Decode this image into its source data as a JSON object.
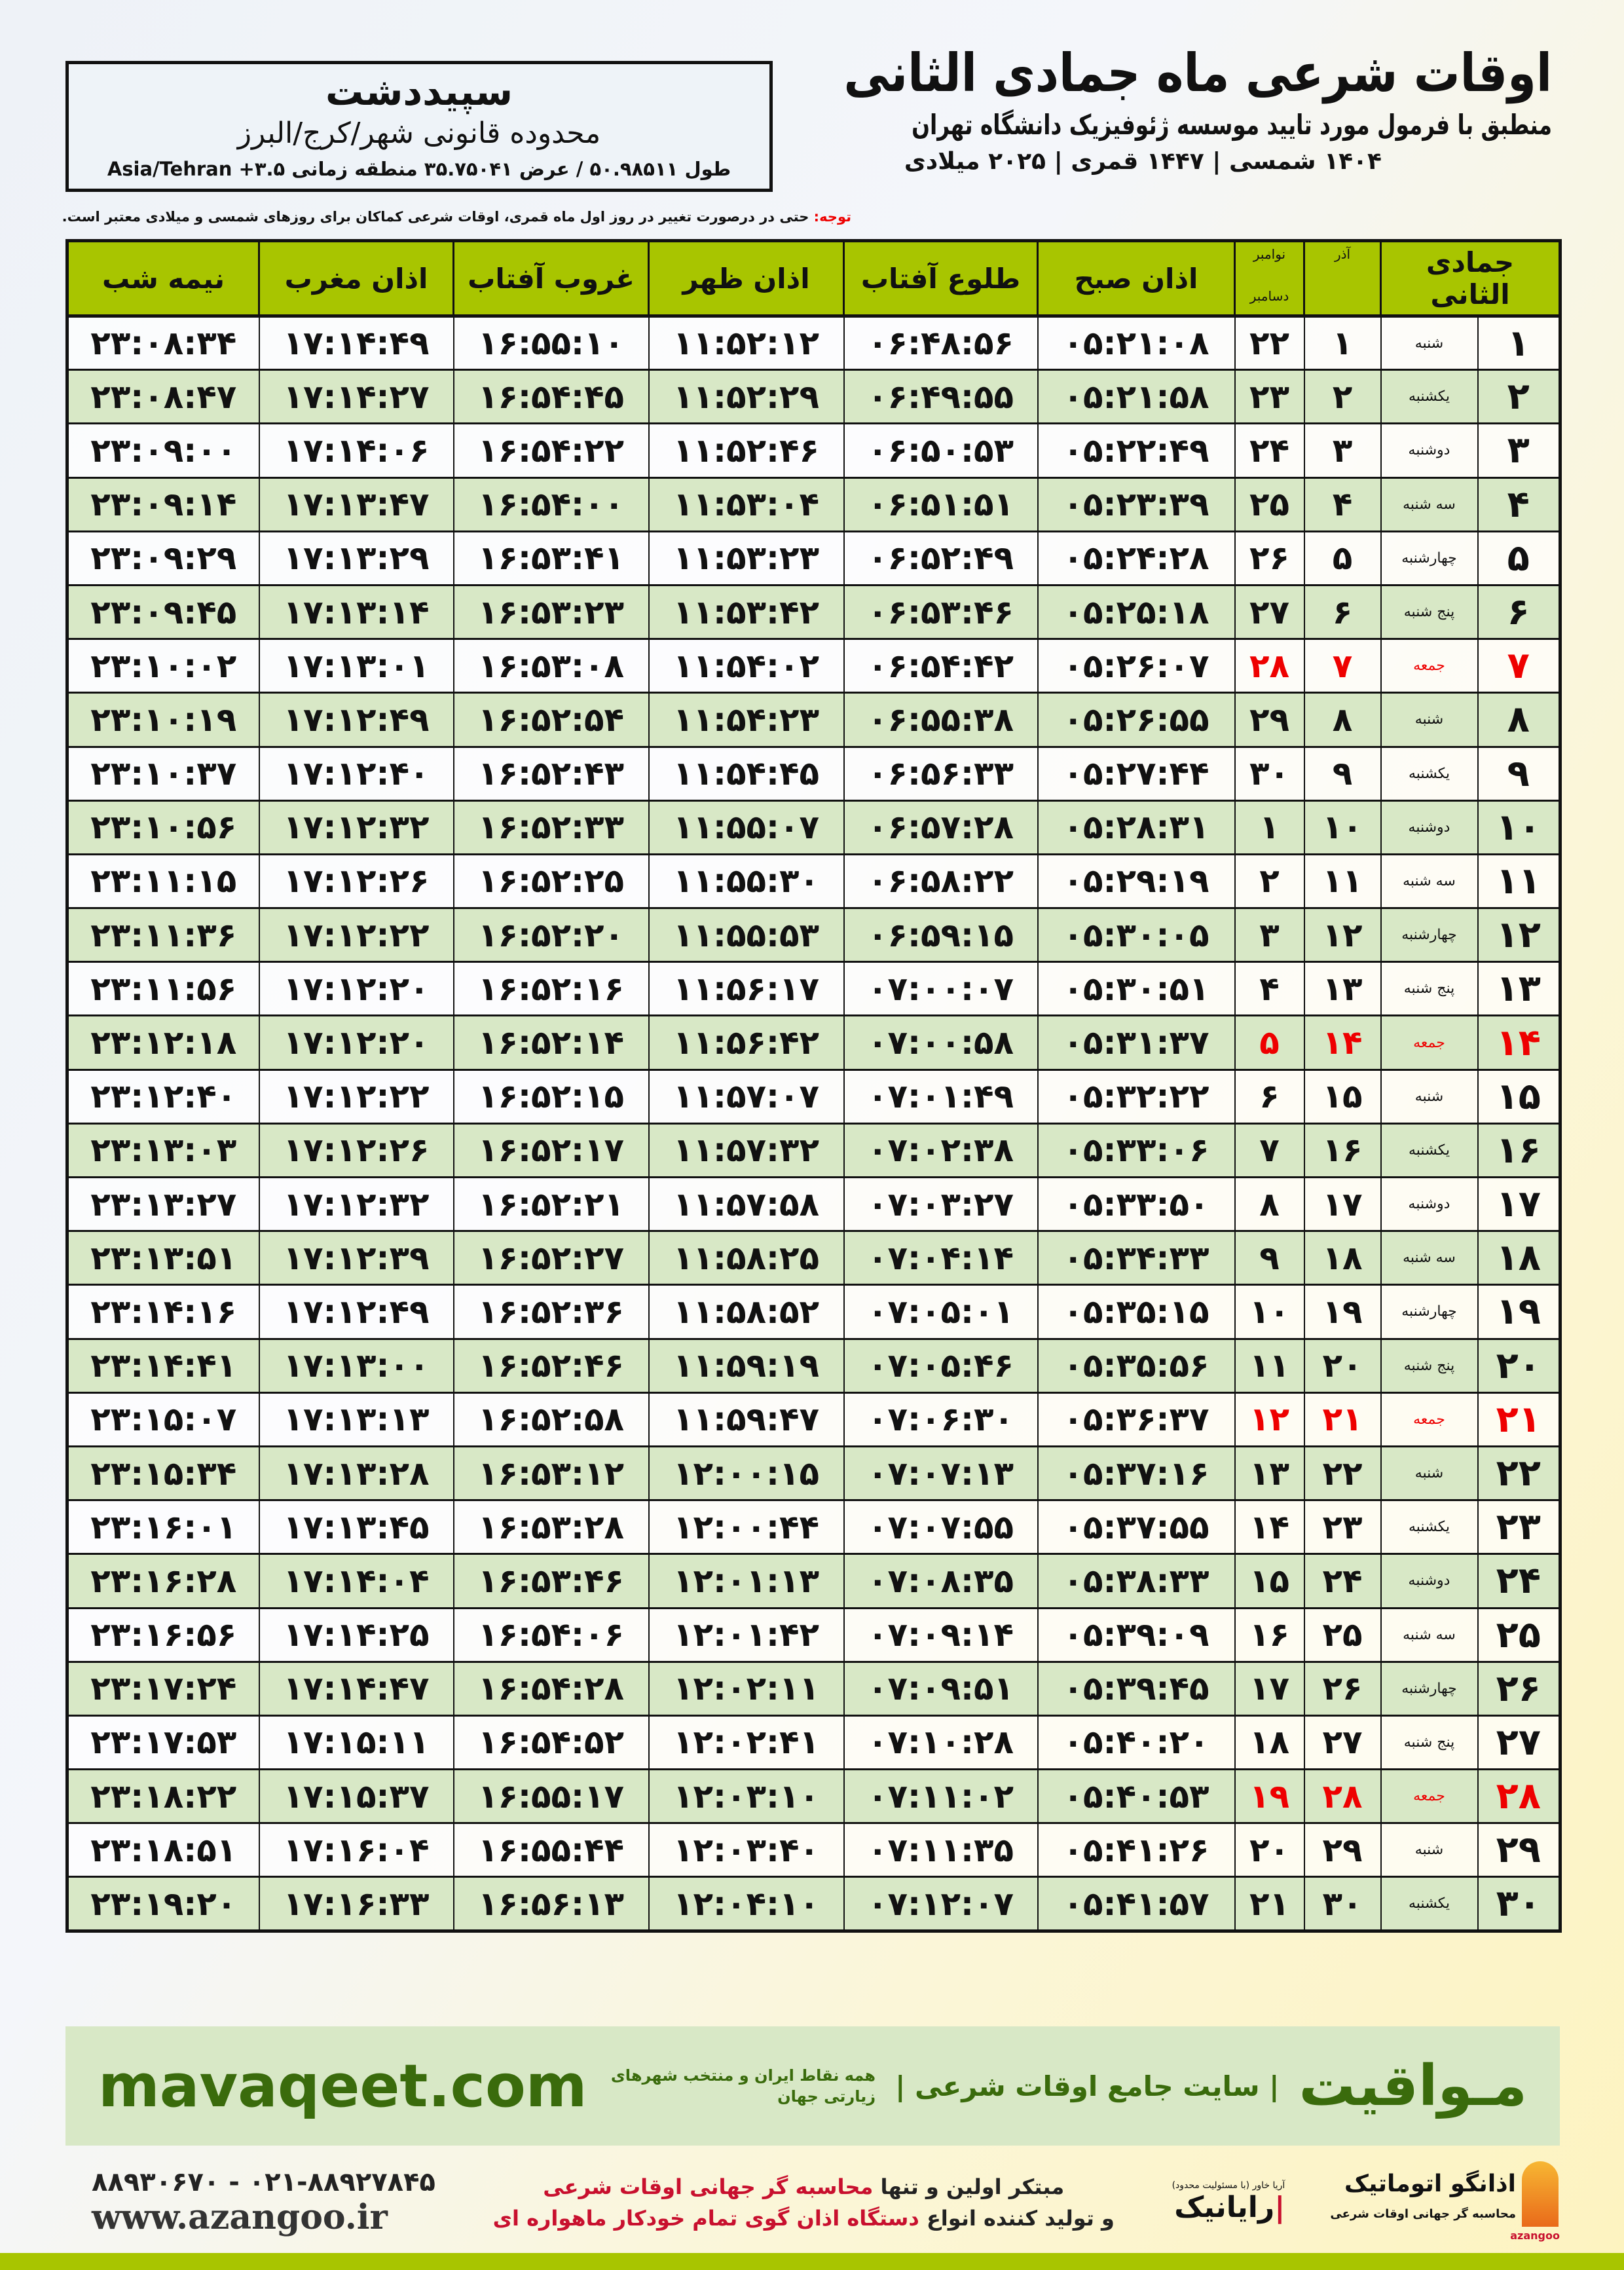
{
  "location": {
    "city": "سپیددشت",
    "region": "محدوده قانونی شهر/کرج/البرز",
    "coords": "طول ۵۰.۹۸۵۱۱ / عرض ۳۵.۷۵۰۴۱ منطقه زمانی ۳.۵+ Asia/Tehran"
  },
  "header": {
    "title": "اوقات شرعی ماه جمادی الثانی",
    "subtitle": "منطبق با فرمول مورد تایید موسسه ژئوفیزیک دانشگاه تهران",
    "years": "۱۴۰۴ شمسی | ۱۴۴۷ قمری | ۲۰۲۵ میلادی"
  },
  "note": {
    "label": "توجه:",
    "text": " حتی در درصورت تغییر در روز اول ماه قمری، اوقات شرعی کماکان برای روزهای شمسی و میلادی معتبر است."
  },
  "table": {
    "columns": {
      "hijri": "جمادی الثانی",
      "azar": "آذر",
      "greg_top": "نوامبر",
      "greg_bottom": "دسامبر",
      "fajr": "اذان صبح",
      "sunrise": "طلوع آفتاب",
      "dhuhr": "اذان ظهر",
      "sunset": "غروب آفتاب",
      "maghrib": "اذان مغرب",
      "midnight": "نیمه شب"
    },
    "holiday_color": "#e00000",
    "rows": [
      [
        "۱",
        "شنبه",
        "۱",
        "۲۲",
        "۰۵:۲۱:۰۸",
        "۰۶:۴۸:۵۶",
        "۱۱:۵۲:۱۲",
        "۱۶:۵۵:۱۰",
        "۱۷:۱۴:۴۹",
        "۲۳:۰۸:۳۴"
      ],
      [
        "۲",
        "یکشنبه",
        "۲",
        "۲۳",
        "۰۵:۲۱:۵۸",
        "۰۶:۴۹:۵۵",
        "۱۱:۵۲:۲۹",
        "۱۶:۵۴:۴۵",
        "۱۷:۱۴:۲۷",
        "۲۳:۰۸:۴۷"
      ],
      [
        "۳",
        "دوشنبه",
        "۳",
        "۲۴",
        "۰۵:۲۲:۴۹",
        "۰۶:۵۰:۵۳",
        "۱۱:۵۲:۴۶",
        "۱۶:۵۴:۲۲",
        "۱۷:۱۴:۰۶",
        "۲۳:۰۹:۰۰"
      ],
      [
        "۴",
        "سه شنبه",
        "۴",
        "۲۵",
        "۰۵:۲۳:۳۹",
        "۰۶:۵۱:۵۱",
        "۱۱:۵۳:۰۴",
        "۱۶:۵۴:۰۰",
        "۱۷:۱۳:۴۷",
        "۲۳:۰۹:۱۴"
      ],
      [
        "۵",
        "چهارشنبه",
        "۵",
        "۲۶",
        "۰۵:۲۴:۲۸",
        "۰۶:۵۲:۴۹",
        "۱۱:۵۳:۲۳",
        "۱۶:۵۳:۴۱",
        "۱۷:۱۳:۲۹",
        "۲۳:۰۹:۲۹"
      ],
      [
        "۶",
        "پنج شنبه",
        "۶",
        "۲۷",
        "۰۵:۲۵:۱۸",
        "۰۶:۵۳:۴۶",
        "۱۱:۵۳:۴۲",
        "۱۶:۵۳:۲۳",
        "۱۷:۱۳:۱۴",
        "۲۳:۰۹:۴۵"
      ],
      [
        "۷",
        "جمعه",
        "۷",
        "۲۸",
        "۰۵:۲۶:۰۷",
        "۰۶:۵۴:۴۲",
        "۱۱:۵۴:۰۲",
        "۱۶:۵۳:۰۸",
        "۱۷:۱۳:۰۱",
        "۲۳:۱۰:۰۲"
      ],
      [
        "۸",
        "شنبه",
        "۸",
        "۲۹",
        "۰۵:۲۶:۵۵",
        "۰۶:۵۵:۳۸",
        "۱۱:۵۴:۲۳",
        "۱۶:۵۲:۵۴",
        "۱۷:۱۲:۴۹",
        "۲۳:۱۰:۱۹"
      ],
      [
        "۹",
        "یکشنبه",
        "۹",
        "۳۰",
        "۰۵:۲۷:۴۴",
        "۰۶:۵۶:۳۳",
        "۱۱:۵۴:۴۵",
        "۱۶:۵۲:۴۳",
        "۱۷:۱۲:۴۰",
        "۲۳:۱۰:۳۷"
      ],
      [
        "۱۰",
        "دوشنبه",
        "۱۰",
        "۱",
        "۰۵:۲۸:۳۱",
        "۰۶:۵۷:۲۸",
        "۱۱:۵۵:۰۷",
        "۱۶:۵۲:۳۳",
        "۱۷:۱۲:۳۲",
        "۲۳:۱۰:۵۶"
      ],
      [
        "۱۱",
        "سه شنبه",
        "۱۱",
        "۲",
        "۰۵:۲۹:۱۹",
        "۰۶:۵۸:۲۲",
        "۱۱:۵۵:۳۰",
        "۱۶:۵۲:۲۵",
        "۱۷:۱۲:۲۶",
        "۲۳:۱۱:۱۵"
      ],
      [
        "۱۲",
        "چهارشنبه",
        "۱۲",
        "۳",
        "۰۵:۳۰:۰۵",
        "۰۶:۵۹:۱۵",
        "۱۱:۵۵:۵۳",
        "۱۶:۵۲:۲۰",
        "۱۷:۱۲:۲۲",
        "۲۳:۱۱:۳۶"
      ],
      [
        "۱۳",
        "پنج شنبه",
        "۱۳",
        "۴",
        "۰۵:۳۰:۵۱",
        "۰۷:۰۰:۰۷",
        "۱۱:۵۶:۱۷",
        "۱۶:۵۲:۱۶",
        "۱۷:۱۲:۲۰",
        "۲۳:۱۱:۵۶"
      ],
      [
        "۱۴",
        "جمعه",
        "۱۴",
        "۵",
        "۰۵:۳۱:۳۷",
        "۰۷:۰۰:۵۸",
        "۱۱:۵۶:۴۲",
        "۱۶:۵۲:۱۴",
        "۱۷:۱۲:۲۰",
        "۲۳:۱۲:۱۸"
      ],
      [
        "۱۵",
        "شنبه",
        "۱۵",
        "۶",
        "۰۵:۳۲:۲۲",
        "۰۷:۰۱:۴۹",
        "۱۱:۵۷:۰۷",
        "۱۶:۵۲:۱۵",
        "۱۷:۱۲:۲۲",
        "۲۳:۱۲:۴۰"
      ],
      [
        "۱۶",
        "یکشنبه",
        "۱۶",
        "۷",
        "۰۵:۳۳:۰۶",
        "۰۷:۰۲:۳۸",
        "۱۱:۵۷:۳۲",
        "۱۶:۵۲:۱۷",
        "۱۷:۱۲:۲۶",
        "۲۳:۱۳:۰۳"
      ],
      [
        "۱۷",
        "دوشنبه",
        "۱۷",
        "۸",
        "۰۵:۳۳:۵۰",
        "۰۷:۰۳:۲۷",
        "۱۱:۵۷:۵۸",
        "۱۶:۵۲:۲۱",
        "۱۷:۱۲:۳۲",
        "۲۳:۱۳:۲۷"
      ],
      [
        "۱۸",
        "سه شنبه",
        "۱۸",
        "۹",
        "۰۵:۳۴:۳۳",
        "۰۷:۰۴:۱۴",
        "۱۱:۵۸:۲۵",
        "۱۶:۵۲:۲۷",
        "۱۷:۱۲:۳۹",
        "۲۳:۱۳:۵۱"
      ],
      [
        "۱۹",
        "چهارشنبه",
        "۱۹",
        "۱۰",
        "۰۵:۳۵:۱۵",
        "۰۷:۰۵:۰۱",
        "۱۱:۵۸:۵۲",
        "۱۶:۵۲:۳۶",
        "۱۷:۱۲:۴۹",
        "۲۳:۱۴:۱۶"
      ],
      [
        "۲۰",
        "پنج شنبه",
        "۲۰",
        "۱۱",
        "۰۵:۳۵:۵۶",
        "۰۷:۰۵:۴۶",
        "۱۱:۵۹:۱۹",
        "۱۶:۵۲:۴۶",
        "۱۷:۱۳:۰۰",
        "۲۳:۱۴:۴۱"
      ],
      [
        "۲۱",
        "جمعه",
        "۲۱",
        "۱۲",
        "۰۵:۳۶:۳۷",
        "۰۷:۰۶:۳۰",
        "۱۱:۵۹:۴۷",
        "۱۶:۵۲:۵۸",
        "۱۷:۱۳:۱۳",
        "۲۳:۱۵:۰۷"
      ],
      [
        "۲۲",
        "شنبه",
        "۲۲",
        "۱۳",
        "۰۵:۳۷:۱۶",
        "۰۷:۰۷:۱۳",
        "۱۲:۰۰:۱۵",
        "۱۶:۵۳:۱۲",
        "۱۷:۱۳:۲۸",
        "۲۳:۱۵:۳۴"
      ],
      [
        "۲۳",
        "یکشنبه",
        "۲۳",
        "۱۴",
        "۰۵:۳۷:۵۵",
        "۰۷:۰۷:۵۵",
        "۱۲:۰۰:۴۴",
        "۱۶:۵۳:۲۸",
        "۱۷:۱۳:۴۵",
        "۲۳:۱۶:۰۱"
      ],
      [
        "۲۴",
        "دوشنبه",
        "۲۴",
        "۱۵",
        "۰۵:۳۸:۳۳",
        "۰۷:۰۸:۳۵",
        "۱۲:۰۱:۱۳",
        "۱۶:۵۳:۴۶",
        "۱۷:۱۴:۰۴",
        "۲۳:۱۶:۲۸"
      ],
      [
        "۲۵",
        "سه شنبه",
        "۲۵",
        "۱۶",
        "۰۵:۳۹:۰۹",
        "۰۷:۰۹:۱۴",
        "۱۲:۰۱:۴۲",
        "۱۶:۵۴:۰۶",
        "۱۷:۱۴:۲۵",
        "۲۳:۱۶:۵۶"
      ],
      [
        "۲۶",
        "چهارشنبه",
        "۲۶",
        "۱۷",
        "۰۵:۳۹:۴۵",
        "۰۷:۰۹:۵۱",
        "۱۲:۰۲:۱۱",
        "۱۶:۵۴:۲۸",
        "۱۷:۱۴:۴۷",
        "۲۳:۱۷:۲۴"
      ],
      [
        "۲۷",
        "پنج شنبه",
        "۲۷",
        "۱۸",
        "۰۵:۴۰:۲۰",
        "۰۷:۱۰:۲۸",
        "۱۲:۰۲:۴۱",
        "۱۶:۵۴:۵۲",
        "۱۷:۱۵:۱۱",
        "۲۳:۱۷:۵۳"
      ],
      [
        "۲۸",
        "جمعه",
        "۲۸",
        "۱۹",
        "۰۵:۴۰:۵۳",
        "۰۷:۱۱:۰۲",
        "۱۲:۰۳:۱۰",
        "۱۶:۵۵:۱۷",
        "۱۷:۱۵:۳۷",
        "۲۳:۱۸:۲۲"
      ],
      [
        "۲۹",
        "شنبه",
        "۲۹",
        "۲۰",
        "۰۵:۴۱:۲۶",
        "۰۷:۱۱:۳۵",
        "۱۲:۰۳:۴۰",
        "۱۶:۵۵:۴۴",
        "۱۷:۱۶:۰۴",
        "۲۳:۱۸:۵۱"
      ],
      [
        "۳۰",
        "یکشنبه",
        "۳۰",
        "۲۱",
        "۰۵:۴۱:۵۷",
        "۰۷:۱۲:۰۷",
        "۱۲:۰۴:۱۰",
        "۱۶:۵۶:۱۳",
        "۱۷:۱۶:۳۳",
        "۲۳:۱۹:۲۰"
      ]
    ]
  },
  "ad": {
    "brand": "مـواقیت",
    "slogan": "| سایت جامع اوقات شرعی |",
    "sub": "همه نقاط ایران و منتخب شهرهای زیارتی جهان",
    "site": "mavaqeet.com"
  },
  "footer": {
    "phone": "۰۲۱-۸۸۹۲۷۸۴۵ - ۸۸۹۳۰۶۷۰",
    "web": "www.azangoo.ir",
    "promo1a": "مبتکر اولین و تنها ",
    "promo1b": "محاسبه گر جهانی اوقات شرعی",
    "promo2a": "و تولید کننده انواع ",
    "promo2b": "دستگاه اذان گوی تمام خودکار ماهواره ای",
    "logo_rayanik": "رایانیک",
    "logo_rayanik_small": "آریا خاور (با مسئولیت محدود)",
    "logo_azangoo": "اذانگو اتوماتیک",
    "logo_azangoo_sub": "محاسبه گر جهانی اوقات شرعی",
    "logo_azangoo_en": "azangoo"
  },
  "colors": {
    "header_green": "#a8c500",
    "row_green": "#d8e8c6",
    "brand_green": "#3a6b0c",
    "accent_red": "#c8102e"
  }
}
